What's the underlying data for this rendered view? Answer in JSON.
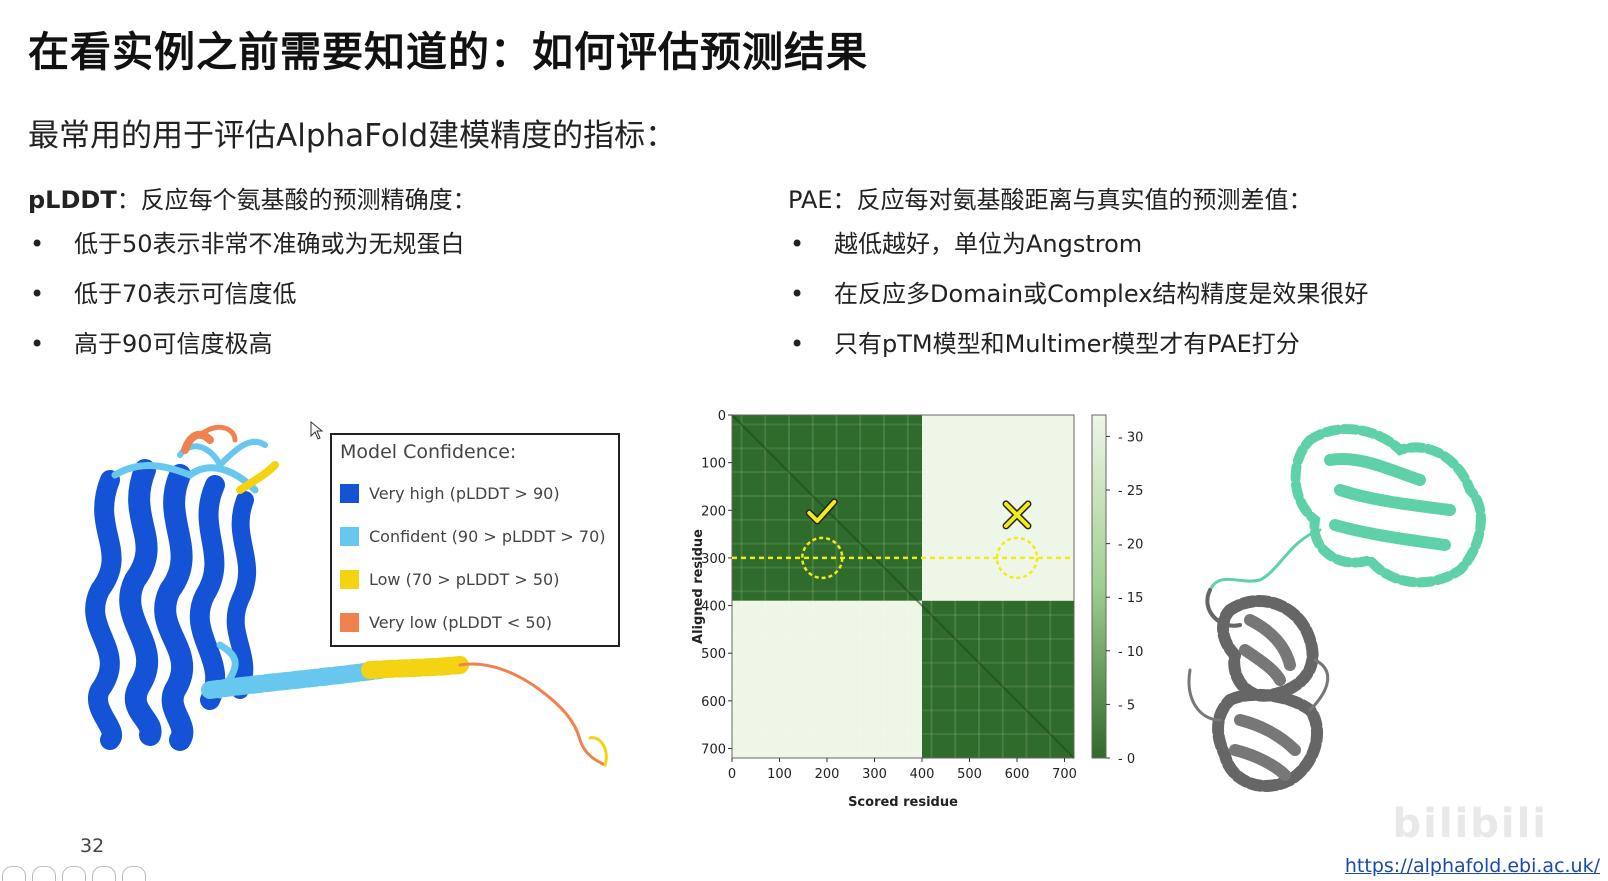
{
  "title": "在看实例之前需要知道的：如何评估预测结果",
  "subtitle": "最常用的用于评估AlphaFold建模精度的指标：",
  "left": {
    "term": "pLDDT",
    "desc": "：反应每个氨基酸的预测精确度：",
    "items": [
      "低于50表示非常不准确或为无规蛋白",
      "低于70表示可信度低",
      "高于90可信度极高"
    ]
  },
  "right": {
    "term": "PAE",
    "desc": "：反应每对氨基酸距离与真实值的预测差值：",
    "items": [
      "越低越好，单位为Angstrom",
      "在反应多Domain或Complex结构精度是效果很好",
      "只有pTM模型和Multimer模型才有PAE打分"
    ]
  },
  "bullet": "•",
  "legend": {
    "title": "Model Confidence:",
    "items": [
      {
        "label": "Very high (pLDDT > 90)",
        "color": "#1553d6"
      },
      {
        "label": "Confident (90 > pLDDT > 70)",
        "color": "#67c7ee"
      },
      {
        "label": "Low (70 > pLDDT > 50)",
        "color": "#f4d312"
      },
      {
        "label": "Very low (pLDDT < 50)",
        "color": "#f0824f"
      }
    ]
  },
  "chart_data": {
    "type": "heatmap",
    "xlabel": "Scored residue",
    "ylabel": "Aligned residue",
    "xticks": [
      0,
      100,
      200,
      300,
      400,
      500,
      600,
      700
    ],
    "yticks": [
      0,
      100,
      200,
      300,
      400,
      500,
      600,
      700
    ],
    "xlim": [
      0,
      720
    ],
    "ylim": [
      0,
      720
    ],
    "colorbar_ticks": [
      0,
      5,
      10,
      15,
      20,
      25,
      30
    ],
    "colorbar_range": [
      0,
      32
    ],
    "blocks": [
      {
        "x": [
          0,
          400
        ],
        "y": [
          0,
          390
        ],
        "level": "low"
      },
      {
        "x": [
          400,
          720
        ],
        "y": [
          0,
          390
        ],
        "level": "high"
      },
      {
        "x": [
          0,
          400
        ],
        "y": [
          390,
          720
        ],
        "level": "high"
      },
      {
        "x": [
          400,
          720
        ],
        "y": [
          390,
          720
        ],
        "level": "low"
      }
    ],
    "annotations": [
      {
        "marker": "check",
        "x": 190,
        "y": 300
      },
      {
        "marker": "cross",
        "x": 600,
        "y": 300
      }
    ],
    "highlight_row": 300,
    "colors": {
      "low": "#2f6b2a",
      "high": "#eef6e8",
      "mid": "#9fcf8e",
      "marker": "#f2ea1a"
    }
  },
  "page_number": "32",
  "footer_link": "https://alphafold.ebi.ac.uk/",
  "watermark": "bilibili"
}
